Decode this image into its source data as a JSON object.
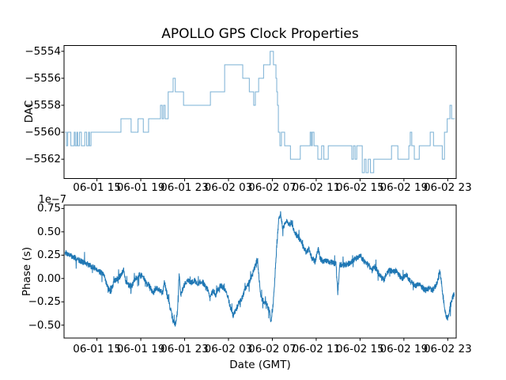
{
  "figure": {
    "title": "APOLLO GPS Clock Properties",
    "background": "#ffffff"
  },
  "colors": {
    "top_line": "#7ab0d4",
    "bottom_line": "#1f77b4",
    "axis": "#000000",
    "text": "#000000"
  },
  "chart_data": [
    {
      "type": "line",
      "subplot": "top",
      "style": "step-post",
      "title": "APOLLO GPS Clock Properties",
      "ylabel": "DAC",
      "grid": false,
      "legend": "none",
      "xlim": [
        0,
        35.77
      ],
      "ylim": [
        -5563.43,
        -5553.57
      ],
      "x_end": 35.65,
      "xtick_values": [
        3,
        7,
        11,
        15,
        19,
        23,
        27,
        31,
        35
      ],
      "xtick_labels": [
        "06-01 15",
        "06-01 19",
        "06-01 23",
        "06-02 03",
        "06-02 07",
        "06-02 11",
        "06-02 15",
        "06-02 19",
        "06-02 23"
      ],
      "ytick_values": [
        -5554,
        -5556,
        -5558,
        -5560,
        -5562
      ],
      "ytick_labels": [
        "−5554",
        "−5556",
        "−5558",
        "−5560",
        "−5562"
      ],
      "steps": [
        [
          0.1,
          -5560
        ],
        [
          0.22,
          -5561
        ],
        [
          0.33,
          -5560
        ],
        [
          0.62,
          -5561
        ],
        [
          0.93,
          -5560
        ],
        [
          1.02,
          -5561
        ],
        [
          1.17,
          -5560
        ],
        [
          1.24,
          -5561
        ],
        [
          1.41,
          -5560
        ],
        [
          1.58,
          -5561
        ],
        [
          1.89,
          -5560
        ],
        [
          2.06,
          -5561
        ],
        [
          2.24,
          -5560
        ],
        [
          2.32,
          -5561
        ],
        [
          2.46,
          -5560
        ],
        [
          5.19,
          -5559
        ],
        [
          6.12,
          -5560
        ],
        [
          6.75,
          -5559
        ],
        [
          7.23,
          -5560
        ],
        [
          7.71,
          -5559
        ],
        [
          8.8,
          -5558
        ],
        [
          8.95,
          -5559
        ],
        [
          9.08,
          -5558
        ],
        [
          9.22,
          -5559
        ],
        [
          9.5,
          -5557
        ],
        [
          9.95,
          -5556
        ],
        [
          10.15,
          -5557
        ],
        [
          10.9,
          -5558
        ],
        [
          13.35,
          -5557
        ],
        [
          14.65,
          -5555
        ],
        [
          16.3,
          -5556
        ],
        [
          16.9,
          -5557
        ],
        [
          17.3,
          -5558
        ],
        [
          17.45,
          -5557
        ],
        [
          17.75,
          -5556
        ],
        [
          18.2,
          -5555
        ],
        [
          18.8,
          -5554
        ],
        [
          19.1,
          -5555
        ],
        [
          19.33,
          -5556
        ],
        [
          19.4,
          -5557
        ],
        [
          19.47,
          -5558
        ],
        [
          19.55,
          -5560
        ],
        [
          19.69,
          -5561
        ],
        [
          19.83,
          -5560
        ],
        [
          20.12,
          -5561
        ],
        [
          20.65,
          -5562
        ],
        [
          21.55,
          -5561
        ],
        [
          22.45,
          -5560
        ],
        [
          22.56,
          -5561
        ],
        [
          22.64,
          -5560
        ],
        [
          22.8,
          -5561
        ],
        [
          23.15,
          -5562
        ],
        [
          23.5,
          -5561
        ],
        [
          23.7,
          -5562
        ],
        [
          24.1,
          -5561
        ],
        [
          26.25,
          -5562
        ],
        [
          26.4,
          -5561
        ],
        [
          26.55,
          -5562
        ],
        [
          26.7,
          -5561
        ],
        [
          27.2,
          -5563
        ],
        [
          27.4,
          -5562
        ],
        [
          27.55,
          -5563
        ],
        [
          27.75,
          -5562
        ],
        [
          27.95,
          -5563
        ],
        [
          28.25,
          -5562
        ],
        [
          29.87,
          -5561
        ],
        [
          30.45,
          -5562
        ],
        [
          31.45,
          -5561
        ],
        [
          31.58,
          -5560
        ],
        [
          31.72,
          -5561
        ],
        [
          31.95,
          -5562
        ],
        [
          32.4,
          -5561
        ],
        [
          33.4,
          -5560
        ],
        [
          33.7,
          -5561
        ],
        [
          34.5,
          -5562
        ],
        [
          34.7,
          -5560
        ],
        [
          34.95,
          -5559
        ],
        [
          35.2,
          -5558
        ],
        [
          35.35,
          -5559
        ]
      ]
    },
    {
      "type": "line",
      "subplot": "bottom",
      "style": "noisy-line",
      "ylabel": "Phase (s)",
      "xlabel": "Date (GMT)",
      "offset_text": "1e−7",
      "grid": false,
      "legend": "none",
      "xlim": [
        0,
        35.77
      ],
      "ylim": [
        -0.638,
        0.787
      ],
      "xtick_values": [
        3,
        7,
        11,
        15,
        19,
        23,
        27,
        31,
        35
      ],
      "xtick_labels": [
        "06-01 15",
        "06-01 19",
        "06-01 23",
        "06-02 03",
        "06-02 07",
        "06-02 11",
        "06-02 15",
        "06-02 19",
        "06-02 23"
      ],
      "ytick_values": [
        0.75,
        0.5,
        0.25,
        0,
        -0.25,
        -0.5
      ],
      "ytick_labels": [
        "0.75",
        "0.50",
        "0.25",
        "0.00",
        "−0.25",
        "−0.50"
      ],
      "keypoints": [
        [
          0.1,
          0.28
        ],
        [
          0.5,
          0.25
        ],
        [
          1.0,
          0.22
        ],
        [
          1.5,
          0.19
        ],
        [
          2.0,
          0.16
        ],
        [
          2.5,
          0.13
        ],
        [
          3.0,
          0.1
        ],
        [
          3.4,
          0.06
        ],
        [
          3.7,
          0.02
        ],
        [
          4.0,
          -0.1
        ],
        [
          4.25,
          -0.15
        ],
        [
          4.5,
          -0.05
        ],
        [
          4.8,
          0.0
        ],
        [
          5.1,
          0.02
        ],
        [
          5.45,
          0.1
        ],
        [
          5.6,
          -0.02
        ],
        [
          5.9,
          -0.08
        ],
        [
          6.2,
          -0.07
        ],
        [
          6.5,
          0.0
        ],
        [
          6.9,
          0.04
        ],
        [
          7.2,
          0.02
        ],
        [
          7.5,
          -0.05
        ],
        [
          7.8,
          -0.08
        ],
        [
          8.1,
          -0.16
        ],
        [
          8.4,
          -0.1
        ],
        [
          8.7,
          -0.13
        ],
        [
          9.0,
          -0.15
        ],
        [
          9.15,
          -0.02
        ],
        [
          9.3,
          -0.12
        ],
        [
          9.5,
          -0.22
        ],
        [
          9.8,
          -0.38
        ],
        [
          10.0,
          -0.47
        ],
        [
          10.15,
          -0.5
        ],
        [
          10.35,
          -0.35
        ],
        [
          10.5,
          0.05
        ],
        [
          10.65,
          -0.18
        ],
        [
          10.8,
          -0.12
        ],
        [
          11.0,
          -0.06
        ],
        [
          11.3,
          -0.02
        ],
        [
          11.6,
          -0.05
        ],
        [
          11.9,
          -0.02
        ],
        [
          12.2,
          -0.06
        ],
        [
          12.5,
          -0.03
        ],
        [
          12.8,
          -0.06
        ],
        [
          13.1,
          -0.12
        ],
        [
          13.35,
          -0.2
        ],
        [
          13.6,
          -0.14
        ],
        [
          13.8,
          -0.19
        ],
        [
          14.0,
          -0.12
        ],
        [
          14.3,
          -0.07
        ],
        [
          14.55,
          -0.1
        ],
        [
          14.8,
          -0.15
        ],
        [
          15.0,
          -0.22
        ],
        [
          15.2,
          -0.32
        ],
        [
          15.45,
          -0.4
        ],
        [
          15.7,
          -0.33
        ],
        [
          15.9,
          -0.28
        ],
        [
          16.2,
          -0.22
        ],
        [
          16.5,
          -0.12
        ],
        [
          16.8,
          -0.06
        ],
        [
          17.1,
          0.02
        ],
        [
          17.35,
          0.1
        ],
        [
          17.6,
          0.2
        ],
        [
          17.75,
          0.05
        ],
        [
          17.95,
          -0.2
        ],
        [
          18.2,
          -0.24
        ],
        [
          18.5,
          -0.28
        ],
        [
          18.75,
          -0.35
        ],
        [
          18.9,
          -0.48
        ],
        [
          19.05,
          -0.3
        ],
        [
          19.2,
          -0.05
        ],
        [
          19.4,
          0.35
        ],
        [
          19.6,
          0.65
        ],
        [
          19.75,
          0.7
        ],
        [
          19.95,
          0.54
        ],
        [
          20.15,
          0.58
        ],
        [
          20.35,
          0.62
        ],
        [
          20.55,
          0.57
        ],
        [
          20.75,
          0.6
        ],
        [
          20.95,
          0.52
        ],
        [
          21.2,
          0.47
        ],
        [
          21.5,
          0.42
        ],
        [
          21.8,
          0.34
        ],
        [
          22.1,
          0.28
        ],
        [
          22.35,
          0.31
        ],
        [
          22.6,
          0.22
        ],
        [
          22.9,
          0.18
        ],
        [
          23.2,
          0.32
        ],
        [
          23.35,
          0.22
        ],
        [
          23.6,
          0.18
        ],
        [
          24.0,
          0.19
        ],
        [
          24.4,
          0.17
        ],
        [
          24.8,
          0.16
        ],
        [
          24.97,
          -0.15
        ],
        [
          25.15,
          0.15
        ],
        [
          25.5,
          0.14
        ],
        [
          25.9,
          0.16
        ],
        [
          26.3,
          0.18
        ],
        [
          26.7,
          0.22
        ],
        [
          27.0,
          0.24
        ],
        [
          27.3,
          0.2
        ],
        [
          27.7,
          0.15
        ],
        [
          28.1,
          0.1
        ],
        [
          28.4,
          0.12
        ],
        [
          28.7,
          0.06
        ],
        [
          29.0,
          0.0
        ],
        [
          29.2,
          -0.02
        ],
        [
          29.4,
          0.06
        ],
        [
          29.7,
          0.09
        ],
        [
          30.0,
          0.07
        ],
        [
          30.3,
          0.08
        ],
        [
          30.6,
          0.03
        ],
        [
          30.9,
          0.0
        ],
        [
          31.2,
          0.04
        ],
        [
          31.5,
          -0.02
        ],
        [
          31.8,
          -0.05
        ],
        [
          32.1,
          -0.08
        ],
        [
          32.4,
          -0.05
        ],
        [
          32.7,
          -0.1
        ],
        [
          33.0,
          -0.13
        ],
        [
          33.3,
          -0.1
        ],
        [
          33.6,
          -0.13
        ],
        [
          33.9,
          -0.08
        ],
        [
          34.1,
          -0.02
        ],
        [
          34.25,
          0.1
        ],
        [
          34.4,
          -0.02
        ],
        [
          34.6,
          -0.22
        ],
        [
          34.8,
          -0.38
        ],
        [
          35.0,
          -0.44
        ],
        [
          35.15,
          -0.35
        ],
        [
          35.3,
          -0.27
        ],
        [
          35.45,
          -0.2
        ],
        [
          35.6,
          -0.16
        ]
      ],
      "noise": {
        "amp": 0.032,
        "spike_prob": 0.05,
        "spike_amp": 0.09,
        "dt": 0.015,
        "seed": 7
      }
    }
  ]
}
